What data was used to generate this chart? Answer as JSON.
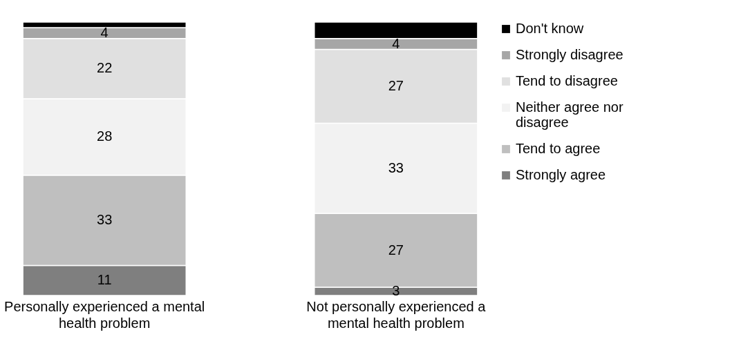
{
  "chart_data": {
    "type": "bar",
    "stacked": true,
    "categories": [
      "Personally experienced a mental health problem",
      "Not personally experienced a mental health problem"
    ],
    "series": [
      {
        "name": "Strongly agree",
        "color": "#7f7f7f",
        "values": [
          11,
          3
        ],
        "value_labels": [
          "11",
          "3"
        ]
      },
      {
        "name": "Tend to agree",
        "color": "#bfbfbf",
        "values": [
          33,
          27
        ],
        "value_labels": [
          "33",
          "27"
        ]
      },
      {
        "name": "Neither agree nor disagree",
        "color": "#f2f2f2",
        "values": [
          28,
          33
        ],
        "value_labels": [
          "28",
          "33"
        ]
      },
      {
        "name": "Tend to disagree",
        "color": "#e0e0e0",
        "values": [
          22,
          27
        ],
        "value_labels": [
          "22",
          "27"
        ]
      },
      {
        "name": "Strongly disagree",
        "color": "#a6a6a6",
        "values": [
          4,
          4
        ],
        "value_labels": [
          "4",
          "4"
        ]
      },
      {
        "name": "Don't know",
        "color": "#000000",
        "values": [
          2,
          6
        ],
        "value_labels": [
          null,
          null
        ]
      }
    ],
    "legend": "right"
  }
}
